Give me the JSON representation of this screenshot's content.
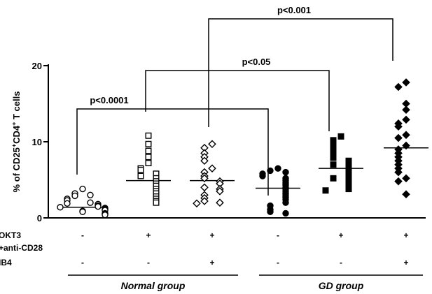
{
  "chart_data": {
    "type": "scatter",
    "ylabel_parts": [
      "% of CD25",
      "+",
      "CD4",
      "+",
      " T cells"
    ],
    "ylim": [
      0,
      20
    ],
    "yticks": [
      0,
      10,
      20
    ],
    "condition_rows": [
      {
        "label": "OKT3",
        "values": [
          "-",
          "+",
          "+",
          "-",
          "+",
          "+"
        ]
      },
      {
        "label": "+anti-CD28",
        "values": [
          "",
          "",
          "",
          "",
          "",
          ""
        ]
      },
      {
        "label": "IB4",
        "values": [
          "-",
          "-",
          "+",
          "-",
          "-",
          "+"
        ]
      }
    ],
    "groups": [
      {
        "label": "Normal group",
        "columns": [
          0,
          1,
          2
        ]
      },
      {
        "label": "GD group",
        "columns": [
          3,
          4,
          5
        ]
      }
    ],
    "significance": [
      {
        "label": "p<0.0001",
        "from": 0,
        "to": 3,
        "y": 14.2
      },
      {
        "label": "p<0.05",
        "from": 1,
        "to": 4,
        "y": 19.2
      },
      {
        "label": "p<0.001",
        "from": 2,
        "to": 5,
        "y": 26.5
      }
    ],
    "series": [
      {
        "marker": "circle-open",
        "mean": 1.4,
        "values": [
          3.8,
          3.2,
          2.9,
          3.0,
          2.5,
          2.3,
          2.0,
          1.9,
          1.8,
          1.6,
          1.5,
          1.4,
          1.3,
          1.2,
          1.1,
          1.0,
          0.9,
          0.8,
          0.6,
          0.5,
          0.4
        ]
      },
      {
        "marker": "square-open",
        "mean": 4.9,
        "values": [
          10.8,
          9.7,
          8.8,
          8.0,
          7.2,
          6.5,
          6.3,
          5.8,
          5.5,
          5.2,
          4.8,
          4.5,
          4.2,
          3.8,
          3.5,
          3.2,
          2.8,
          2.5,
          2.2,
          2.0
        ]
      },
      {
        "marker": "diamond-open",
        "mean": 4.9,
        "values": [
          9.7,
          9.2,
          8.5,
          8.0,
          7.5,
          6.5,
          6.0,
          5.5,
          5.2,
          4.8,
          4.5,
          4.0,
          3.8,
          3.5,
          3.0,
          2.6,
          2.2,
          2.0,
          1.9
        ]
      },
      {
        "marker": "circle-filled",
        "mean": 3.9,
        "values": [
          6.5,
          6.2,
          6.0,
          5.8,
          5.5,
          5.2,
          4.9,
          4.6,
          4.3,
          4.0,
          3.8,
          3.5,
          3.2,
          3.0,
          2.7,
          2.4,
          2.0,
          1.6,
          1.1,
          0.8,
          0.6
        ]
      },
      {
        "marker": "square-filled",
        "mean": 6.5,
        "values": [
          10.7,
          10.2,
          9.5,
          8.8,
          8.2,
          7.9,
          7.5,
          7.0,
          6.8,
          6.5,
          6.2,
          6.0,
          5.6,
          5.2,
          4.9,
          4.6,
          4.3,
          4.0,
          3.8,
          3.6
        ]
      },
      {
        "marker": "diamond-filled",
        "mean": 9.2,
        "values": [
          17.8,
          17.2,
          15.0,
          14.2,
          12.9,
          12.4,
          12.0,
          10.9,
          10.5,
          9.5,
          9.0,
          8.5,
          8.0,
          7.5,
          7.0,
          6.5,
          6.0,
          5.2,
          4.8,
          3.1
        ]
      }
    ]
  }
}
